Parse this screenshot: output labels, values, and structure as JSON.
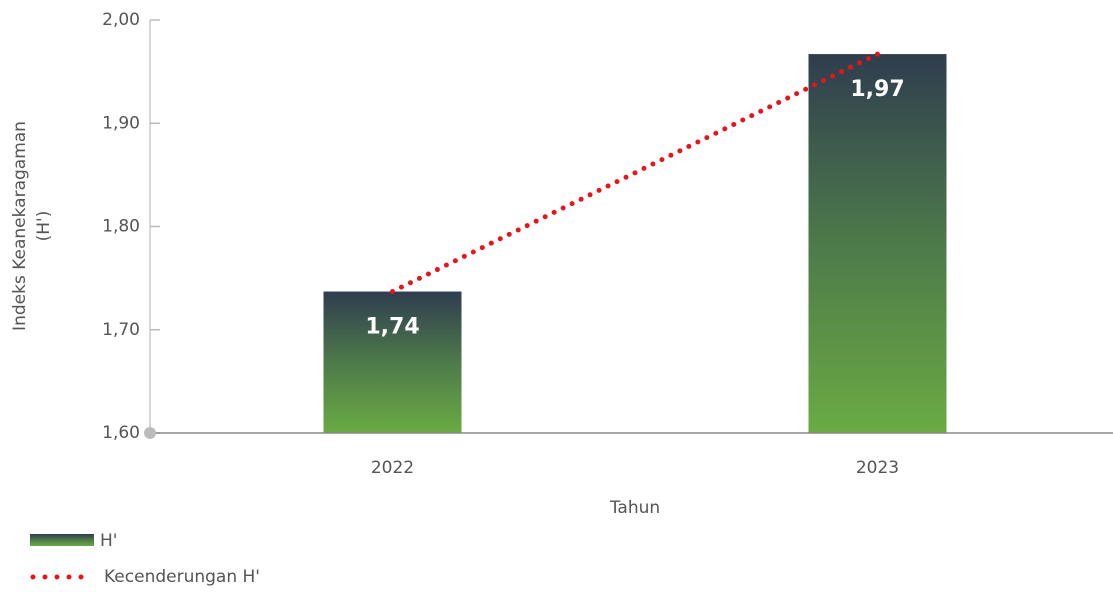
{
  "chart_data": {
    "type": "bar",
    "ylabel": [
      "Indeks Keanekaragaman",
      "(H')"
    ],
    "xlabel": "Tahun",
    "categories": [
      "2022",
      "2023"
    ],
    "series": [
      {
        "name": "H'",
        "type": "bar",
        "color": [
          "#2f3d4f",
          "#4d7a4a",
          "#6aab43"
        ],
        "values": [
          1.737,
          1.967
        ],
        "value_labels": [
          "1,74",
          "1,97"
        ]
      },
      {
        "name": "Kecenderungan H'",
        "type": "line",
        "color": "#e8141c",
        "values": [
          1.737,
          1.967
        ]
      }
    ],
    "ylim": [
      1.6,
      2.0
    ],
    "yticks": [
      {
        "value": 1.6,
        "label": "1,60"
      },
      {
        "value": 1.7,
        "label": "1,70"
      },
      {
        "value": 1.8,
        "label": "1,80"
      },
      {
        "value": 1.9,
        "label": "1,90"
      },
      {
        "value": 2.0,
        "label": "2,00"
      }
    ],
    "legend": "bottom-left"
  }
}
